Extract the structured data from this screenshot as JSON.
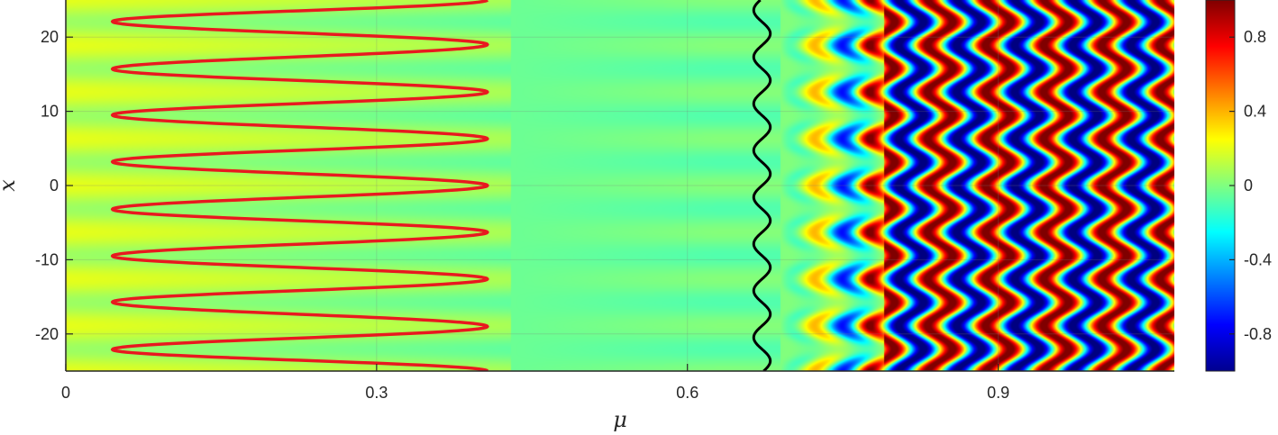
{
  "chart_data": {
    "type": "heatmap",
    "xlabel": "μ",
    "ylabel": "x",
    "xlim": [
      0,
      1.07
    ],
    "ylim": [
      -25,
      25
    ],
    "xticks": [
      "0",
      "0.3",
      "0.6",
      "0.9"
    ],
    "yticks": [
      "-20",
      "-10",
      "0",
      "10",
      "20"
    ],
    "colormap": "jet",
    "colorbar": {
      "range": [
        -1,
        1
      ],
      "ticks": [
        "-0.8",
        "-0.4",
        "0",
        "0.4",
        "0.8"
      ]
    },
    "grid": true,
    "overlays": [
      {
        "type": "line",
        "color": "#e8191f",
        "mu_min": 0.045,
        "mu_max": 0.407,
        "turning_points_right_x": [
          -25,
          -19,
          -12.6,
          -6.3,
          0,
          6.3,
          12.6,
          19,
          25
        ],
        "turning_points_left_x": [
          -22.1,
          -15.7,
          -9.5,
          -3.2,
          3.2,
          9.5,
          15.7,
          22.1
        ]
      },
      {
        "type": "line",
        "color": "#000000",
        "mu_center": 0.672,
        "mu_amplitude": 0.008,
        "x_period": 6.3
      }
    ]
  },
  "colors": {
    "grid": "#7a7a7a",
    "axes": "#262626",
    "red_curve": "#e8191f",
    "black_curve": "#000000"
  }
}
